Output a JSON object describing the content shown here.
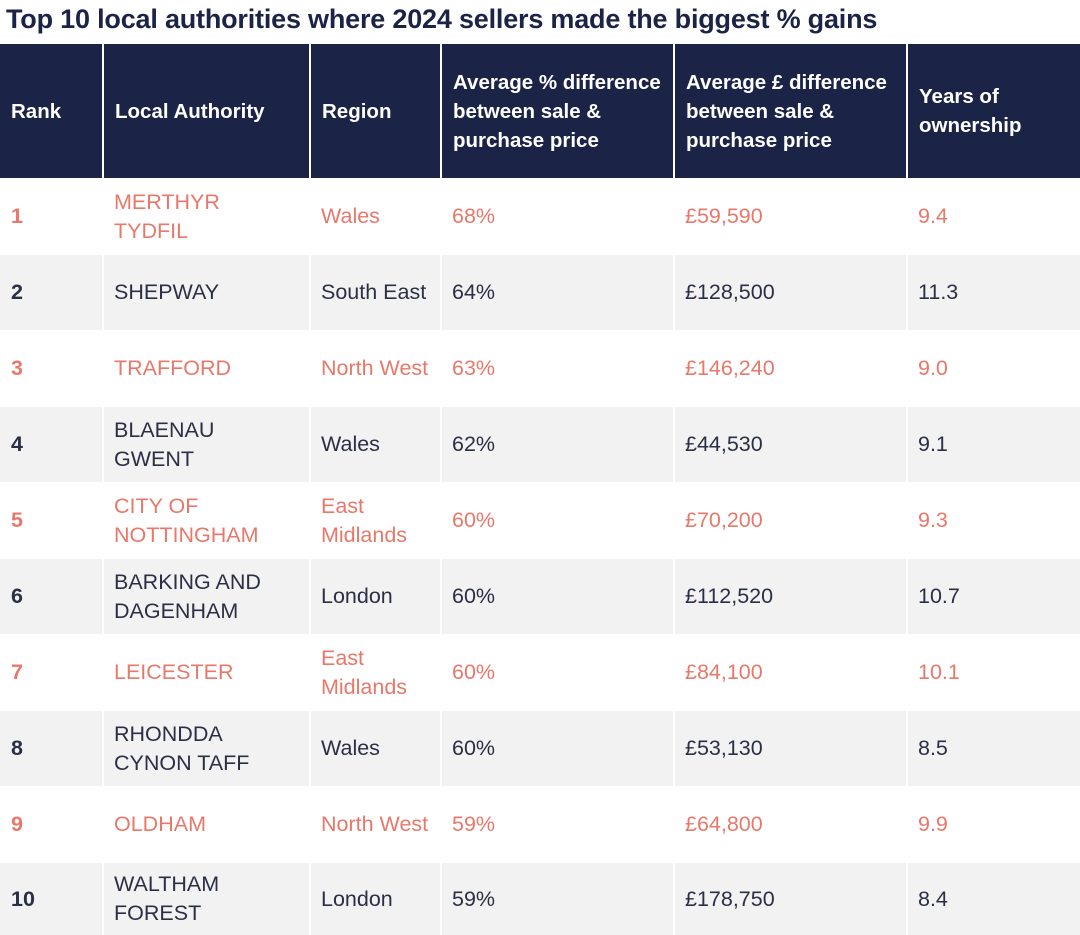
{
  "title": "Top 10 local authorities where 2024 sellers made the biggest % gains",
  "colors": {
    "header_bg": "#1b2346",
    "header_text": "#ffffff",
    "accent_row_text": "#e8786a",
    "alt_row_bg": "#f2f2f2",
    "alt_row_text": "#2b2f45"
  },
  "table": {
    "headers": {
      "rank": "Rank",
      "local_authority": "Local Authority",
      "region": "Region",
      "avg_pct": "Average % difference between sale & purchase price",
      "avg_gbp": "Average £ difference between sale & purchase price",
      "years": "Years of ownership"
    },
    "rows": [
      {
        "rank": "1",
        "local_authority": "MERTHYR TYDFIL",
        "region": "Wales",
        "avg_pct": "68%",
        "avg_gbp": "£59,590",
        "years": "9.4"
      },
      {
        "rank": "2",
        "local_authority": "SHEPWAY",
        "region": "South East",
        "avg_pct": "64%",
        "avg_gbp": "£128,500",
        "years": "11.3"
      },
      {
        "rank": "3",
        "local_authority": "TRAFFORD",
        "region": "North West",
        "avg_pct": "63%",
        "avg_gbp": "£146,240",
        "years": "9.0"
      },
      {
        "rank": "4",
        "local_authority": "BLAENAU GWENT",
        "region": "Wales",
        "avg_pct": "62%",
        "avg_gbp": "£44,530",
        "years": "9.1"
      },
      {
        "rank": "5",
        "local_authority": "CITY OF NOTTINGHAM",
        "region": "East Midlands",
        "avg_pct": "60%",
        "avg_gbp": "£70,200",
        "years": "9.3"
      },
      {
        "rank": "6",
        "local_authority": "BARKING AND DAGENHAM",
        "region": "London",
        "avg_pct": "60%",
        "avg_gbp": "£112,520",
        "years": "10.7"
      },
      {
        "rank": "7",
        "local_authority": "LEICESTER",
        "region": "East Midlands",
        "avg_pct": "60%",
        "avg_gbp": "£84,100",
        "years": "10.1"
      },
      {
        "rank": "8",
        "local_authority": "RHONDDA CYNON TAFF",
        "region": "Wales",
        "avg_pct": "60%",
        "avg_gbp": "£53,130",
        "years": "8.5"
      },
      {
        "rank": "9",
        "local_authority": "OLDHAM",
        "region": "North West",
        "avg_pct": "59%",
        "avg_gbp": "£64,800",
        "years": "9.9"
      },
      {
        "rank": "10",
        "local_authority": "WALTHAM FOREST",
        "region": "London",
        "avg_pct": "59%",
        "avg_gbp": "£178,750",
        "years": "8.4"
      }
    ]
  }
}
